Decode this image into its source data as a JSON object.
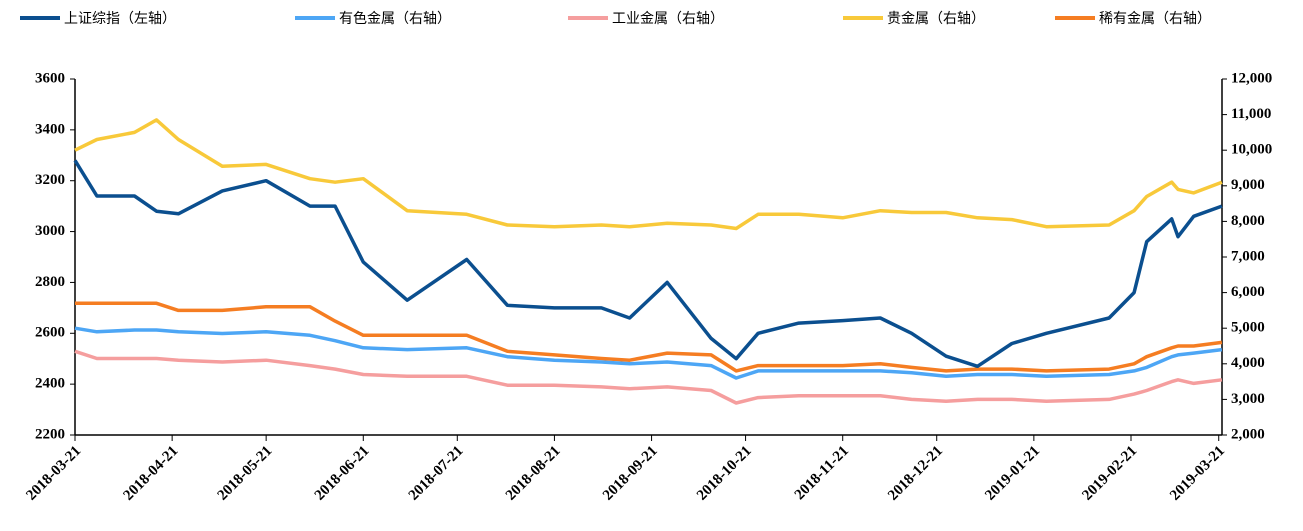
{
  "chart_data": {
    "type": "line",
    "legend": "top",
    "x": [
      "2018-03-21",
      "2018-03-28",
      "2018-04-09",
      "2018-04-16",
      "2018-04-23",
      "2018-05-07",
      "2018-05-21",
      "2018-06-04",
      "2018-06-12",
      "2018-06-21",
      "2018-07-05",
      "2018-07-24",
      "2018-08-06",
      "2018-08-21",
      "2018-09-05",
      "2018-09-14",
      "2018-09-26",
      "2018-10-10",
      "2018-10-18",
      "2018-10-25",
      "2018-11-07",
      "2018-11-21",
      "2018-12-03",
      "2018-12-13",
      "2018-12-24",
      "2019-01-03",
      "2019-01-14",
      "2019-01-25",
      "2019-02-14",
      "2019-02-22",
      "2019-02-26",
      "2019-03-06",
      "2019-03-08",
      "2019-03-13",
      "2019-03-22"
    ],
    "xlim": [
      "2018-03-21",
      "2019-03-23"
    ],
    "xticks": [
      "2018-03-21",
      "2018-04-21",
      "2018-05-21",
      "2018-06-21",
      "2018-07-21",
      "2018-08-21",
      "2018-09-21",
      "2018-10-21",
      "2018-11-21",
      "2018-12-21",
      "2019-01-21",
      "2019-02-21",
      "2019-03-21"
    ],
    "ylim": [
      2200,
      3600
    ],
    "yticks": [
      2200,
      2400,
      2600,
      2800,
      3000,
      3200,
      3400,
      3600
    ],
    "y2lim": [
      2000,
      12000
    ],
    "y2ticks": [
      {
        "value": 2000,
        "label": "2,000"
      },
      {
        "value": 3000,
        "label": "3,000"
      },
      {
        "value": 4000,
        "label": "4,000"
      },
      {
        "value": 5000,
        "label": "5,000"
      },
      {
        "value": 6000,
        "label": "6,000"
      },
      {
        "value": 7000,
        "label": "7,000"
      },
      {
        "value": 8000,
        "label": "8,000"
      },
      {
        "value": 9000,
        "label": "9,000"
      },
      {
        "value": 10000,
        "label": "10,000"
      },
      {
        "value": 11000,
        "label": "11,000"
      },
      {
        "value": 12000,
        "label": "12,000"
      }
    ],
    "series": [
      {
        "name": "上证综指（左轴）",
        "color": "#0b4f8f",
        "axis": "y",
        "values": [
          3280,
          3140,
          3140,
          3080,
          3070,
          3160,
          3200,
          3100,
          3100,
          2880,
          2730,
          2890,
          2710,
          2700,
          2700,
          2660,
          2800,
          2580,
          2500,
          2600,
          2640,
          2650,
          2660,
          2600,
          2510,
          2470,
          2560,
          2600,
          2660,
          2760,
          2960,
          3050,
          2980,
          3060,
          3100
        ]
      },
      {
        "name": "有色金属（右轴）",
        "color": "#4da6f5",
        "axis": "y2",
        "values": [
          5000,
          4900,
          4950,
          4950,
          4900,
          4850,
          4900,
          4800,
          4650,
          4450,
          4400,
          4450,
          4200,
          4100,
          4050,
          4000,
          4050,
          3950,
          3600,
          3800,
          3800,
          3800,
          3800,
          3750,
          3650,
          3700,
          3700,
          3650,
          3700,
          3800,
          3900,
          4200,
          4250,
          4300,
          4400
        ]
      },
      {
        "name": "工业金属（右轴）",
        "color": "#f59e9e",
        "axis": "y2",
        "values": [
          4350,
          4150,
          4150,
          4150,
          4100,
          4050,
          4100,
          3950,
          3850,
          3700,
          3650,
          3650,
          3400,
          3400,
          3350,
          3300,
          3350,
          3250,
          2900,
          3050,
          3100,
          3100,
          3100,
          3000,
          2950,
          3000,
          3000,
          2950,
          3000,
          3150,
          3250,
          3500,
          3550,
          3450,
          3550
        ]
      },
      {
        "name": "贵金属（右轴）",
        "color": "#f8c93a",
        "axis": "y2",
        "values": [
          10000,
          10300,
          10500,
          10850,
          10300,
          9550,
          9600,
          9200,
          9100,
          9200,
          8300,
          8200,
          7900,
          7850,
          7900,
          7850,
          7950,
          7900,
          7800,
          8200,
          8200,
          8100,
          8300,
          8250,
          8250,
          8100,
          8050,
          7850,
          7900,
          8300,
          8700,
          9100,
          8900,
          8800,
          9100
        ]
      },
      {
        "name": "稀有金属（右轴）",
        "color": "#f57d22",
        "axis": "y2",
        "values": [
          5700,
          5700,
          5700,
          5700,
          5500,
          5500,
          5600,
          5600,
          5200,
          4800,
          4800,
          4800,
          4350,
          4250,
          4150,
          4100,
          4300,
          4250,
          3800,
          3950,
          3950,
          3950,
          4000,
          3900,
          3800,
          3850,
          3850,
          3800,
          3850,
          4000,
          4200,
          4450,
          4500,
          4500,
          4600
        ]
      }
    ]
  }
}
